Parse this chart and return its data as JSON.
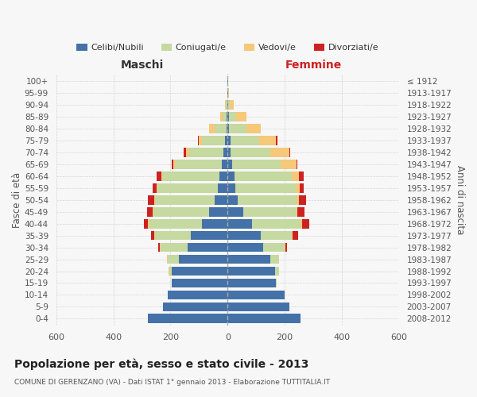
{
  "age_groups": [
    "0-4",
    "5-9",
    "10-14",
    "15-19",
    "20-24",
    "25-29",
    "30-34",
    "35-39",
    "40-44",
    "45-49",
    "50-54",
    "55-59",
    "60-64",
    "65-69",
    "70-74",
    "75-79",
    "80-84",
    "85-89",
    "90-94",
    "95-99",
    "100+"
  ],
  "birth_years": [
    "2008-2012",
    "2003-2007",
    "1998-2002",
    "1993-1997",
    "1988-1992",
    "1983-1987",
    "1978-1982",
    "1973-1977",
    "1968-1972",
    "1963-1967",
    "1958-1962",
    "1953-1957",
    "1948-1952",
    "1943-1947",
    "1938-1942",
    "1933-1937",
    "1928-1932",
    "1923-1927",
    "1918-1922",
    "1913-1917",
    "≤ 1912"
  ],
  "colors": {
    "celibi": "#4472a8",
    "coniugati": "#c5d9a0",
    "vedovi": "#f5c87a",
    "divorziati": "#cc2222"
  },
  "maschi": {
    "celibi": [
      280,
      225,
      210,
      195,
      195,
      170,
      140,
      130,
      90,
      65,
      45,
      35,
      30,
      20,
      15,
      10,
      5,
      3,
      2,
      1,
      1
    ],
    "coniugati": [
      0,
      0,
      0,
      2,
      10,
      40,
      95,
      125,
      185,
      195,
      210,
      210,
      200,
      165,
      120,
      80,
      40,
      15,
      5,
      0,
      0
    ],
    "vedovi": [
      0,
      0,
      0,
      0,
      2,
      2,
      2,
      2,
      3,
      3,
      3,
      3,
      3,
      5,
      10,
      10,
      20,
      8,
      3,
      0,
      0
    ],
    "divorziati": [
      0,
      0,
      0,
      0,
      0,
      0,
      5,
      10,
      15,
      20,
      20,
      15,
      15,
      5,
      8,
      5,
      0,
      0,
      0,
      0,
      0
    ]
  },
  "femmine": {
    "celibi": [
      255,
      215,
      200,
      170,
      165,
      150,
      125,
      115,
      85,
      55,
      35,
      28,
      25,
      15,
      10,
      10,
      5,
      5,
      2,
      2,
      1
    ],
    "coniugati": [
      0,
      0,
      0,
      2,
      15,
      30,
      75,
      110,
      170,
      185,
      205,
      210,
      200,
      170,
      140,
      100,
      60,
      25,
      5,
      0,
      0
    ],
    "vedovi": [
      0,
      0,
      0,
      0,
      0,
      0,
      3,
      3,
      5,
      5,
      10,
      15,
      25,
      55,
      65,
      60,
      50,
      35,
      15,
      2,
      0
    ],
    "divorziati": [
      0,
      0,
      0,
      0,
      0,
      0,
      5,
      20,
      25,
      25,
      25,
      12,
      15,
      5,
      5,
      5,
      2,
      0,
      0,
      0,
      0
    ]
  },
  "xlim": 600,
  "title": "Popolazione per età, sesso e stato civile - 2013",
  "subtitle": "COMUNE DI GERENZANO (VA) - Dati ISTAT 1° gennaio 2013 - Elaborazione TUTTITALIA.IT",
  "xlabel_left": "Maschi",
  "xlabel_right": "Femmine",
  "ylabel_left": "Fasce di età",
  "ylabel_right": "Anni di nascita",
  "legend_labels": [
    "Celibi/Nubili",
    "Coniugati/e",
    "Vedovi/e",
    "Divorziati/e"
  ],
  "background_color": "#f7f7f7",
  "grid_color": "#cccccc",
  "maschi_label_color": "#333333",
  "femmine_label_color": "#cc2222"
}
